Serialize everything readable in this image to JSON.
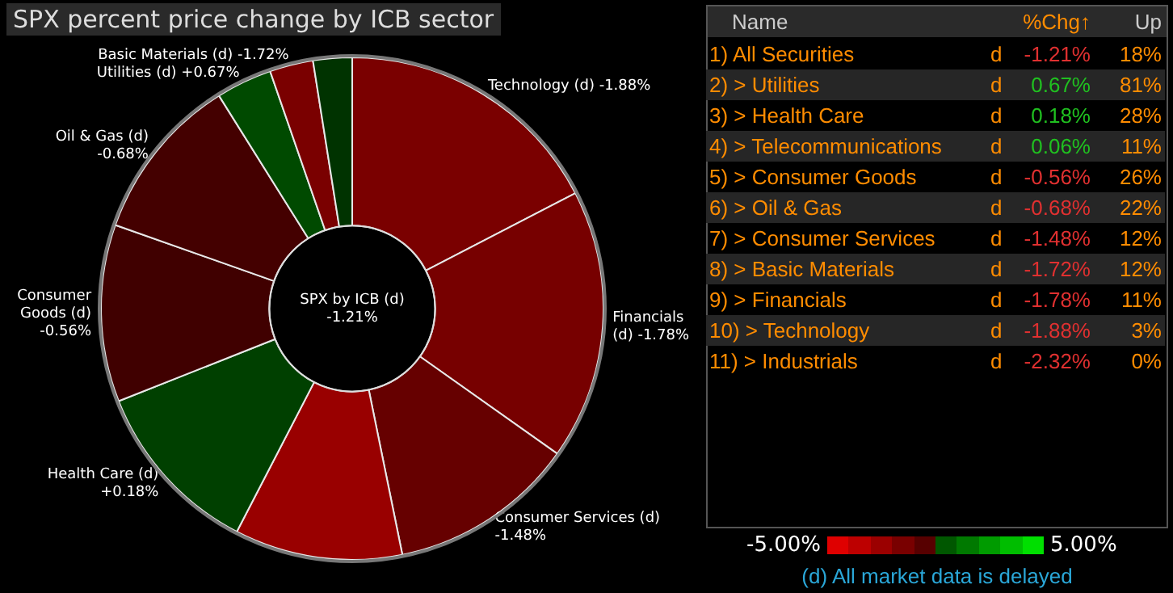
{
  "chart_data": [
    {
      "type": "donut",
      "title": "SPX percent price change by ICB sector",
      "categories": [
        "Technology (d) -1.88%",
        "Financials (d) -1.78%",
        "Consumer Services (d) -1.48%",
        null,
        "Health Care (d) +0.18%",
        "Consumer Goods (d) -0.56%",
        "Oil & Gas (d) -0.68%",
        "Utilities (d) +0.67%",
        "Basic Materials (d) -1.72%",
        null
      ],
      "values": [
        17.4,
        17.4,
        12.0,
        10.8,
        11.4,
        11.4,
        10.7,
        3.6,
        2.8,
        2.5
      ],
      "colors": [
        "#7a0000",
        "#770000",
        "#660000",
        "#990000",
        "#004000",
        "#400000",
        "#440000",
        "#004a00",
        "#7a0000",
        "#003300"
      ],
      "annotations": [
        "SPX by ICB (d) -1.21%",
        "-5.00%",
        "5.00%"
      ]
    },
    {
      "type": "other",
      "xlabel": "Name",
      "y2_categories": [
        "d",
        "d",
        "d",
        "d",
        "d",
        "d",
        "d",
        "d",
        "d",
        "d",
        "d"
      ],
      "categories": [
        "1) All Securities",
        "2) > Utilities",
        "3) > Health Care",
        "4) > Telecommunications",
        "5) > Consumer Goods",
        "6) > Oil & Gas",
        "7) > Consumer Services",
        "8) > Basic Materials",
        "9) > Financials",
        "10) > Technology",
        "11) > Industrials"
      ],
      "series": [
        {
          "name": "%Chg↑",
          "values": [
            -1.21,
            0.67,
            0.18,
            0.06,
            -0.56,
            -0.68,
            -1.48,
            -1.72,
            -1.78,
            -1.88,
            -2.32
          ],
          "value_labels": [
            "-1.21%",
            "0.67%",
            "0.18%",
            "0.06%",
            "-0.56%",
            "-0.68%",
            "-1.48%",
            "-1.72%",
            "-1.78%",
            "-1.88%",
            "-2.32%"
          ]
        },
        {
          "name": "Up",
          "values": [
            18,
            81,
            28,
            11,
            26,
            22,
            12,
            12,
            11,
            3,
            0
          ],
          "value_labels": [
            "18%",
            "81%",
            "28%",
            "11%",
            "26%",
            "22%",
            "12%",
            "12%",
            "11%",
            "3%",
            "0%"
          ]
        }
      ],
      "annotations": [
        "(d) All market data is delayed"
      ]
    }
  ]
}
